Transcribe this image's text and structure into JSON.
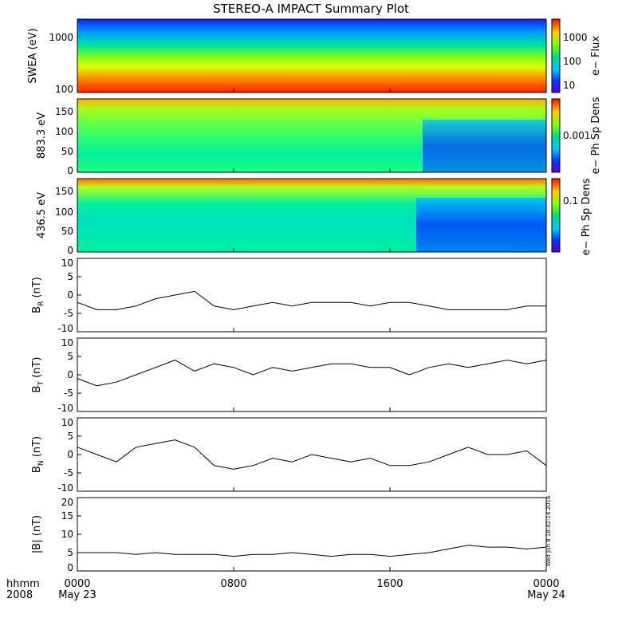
{
  "title": "STEREO-A IMPACT Summary Plot",
  "x_axis": {
    "ticks": [
      "0000",
      "0800",
      "1600",
      "0000"
    ],
    "dates": [
      "May 23",
      "",
      "",
      "May 24"
    ],
    "unit_label": "hhmm",
    "year_label": "2008"
  },
  "timestamp": "Wed Jun  8 18:42:14 2016",
  "colors": {
    "line": "#000000",
    "frame": "#000000",
    "background": "#ffffff"
  },
  "chart_data": [
    {
      "type": "heatmap",
      "ylabel": "SWEA (eV)",
      "yscale": "log",
      "ylim": [
        100,
        2000
      ],
      "yticks": [
        "100",
        "1000"
      ],
      "colorbar": {
        "label": "e− Flux",
        "scale": "log",
        "ticks": [
          "10",
          "100",
          "1000"
        ]
      },
      "description_bands": "flux highest (red) at low energy near 100 eV, decreasing to blue above ~1000 eV"
    },
    {
      "type": "heatmap",
      "ylabel": "883.3 eV",
      "ylim": [
        0,
        180
      ],
      "yticks": [
        "0",
        "50",
        "100",
        "150"
      ],
      "colorbar": {
        "label": "e− Ph Sp Dens",
        "scale": "log",
        "ticks": [
          "0.001"
        ]
      }
    },
    {
      "type": "heatmap",
      "ylabel": "436.5 eV",
      "ylim": [
        0,
        180
      ],
      "yticks": [
        "0",
        "50",
        "100",
        "150"
      ],
      "colorbar": {
        "label": "e− Ph Sp Dens",
        "scale": "log",
        "ticks": [
          "0.1"
        ]
      }
    },
    {
      "type": "line",
      "ylabel": "B_R (nT)",
      "ylabel_main": "B",
      "ylabel_sub": "R",
      "ylabel_unit": "(nT)",
      "ylim": [
        -10,
        10
      ],
      "yticks": [
        "-10",
        "-5",
        "0",
        "5",
        "10"
      ],
      "x": [
        0,
        1,
        2,
        3,
        4,
        5,
        6,
        7,
        8,
        9,
        10,
        11,
        12,
        13,
        14,
        15,
        16,
        17,
        18,
        19,
        20,
        21,
        22,
        23,
        24
      ],
      "y": [
        -2,
        -4,
        -4,
        -3,
        -1,
        0,
        1,
        -3,
        -4,
        -3,
        -2,
        -3,
        -2,
        -2,
        -2,
        -3,
        -2,
        -2,
        -3,
        -4,
        -4,
        -4,
        -4,
        -3,
        -3
      ]
    },
    {
      "type": "line",
      "ylabel": "B_T (nT)",
      "ylabel_main": "B",
      "ylabel_sub": "T",
      "ylabel_unit": "(nT)",
      "ylim": [
        -10,
        10
      ],
      "yticks": [
        "-10",
        "-5",
        "0",
        "5",
        "10"
      ],
      "x": [
        0,
        1,
        2,
        3,
        4,
        5,
        6,
        7,
        8,
        9,
        10,
        11,
        12,
        13,
        14,
        15,
        16,
        17,
        18,
        19,
        20,
        21,
        22,
        23,
        24
      ],
      "y": [
        -1,
        -3,
        -2,
        0,
        2,
        4,
        1,
        3,
        2,
        0,
        2,
        1,
        2,
        3,
        3,
        2,
        2,
        0,
        2,
        3,
        2,
        3,
        4,
        3,
        4
      ]
    },
    {
      "type": "line",
      "ylabel": "B_N (nT)",
      "ylabel_main": "B",
      "ylabel_sub": "N",
      "ylabel_unit": "(nT)",
      "ylim": [
        -10,
        10
      ],
      "yticks": [
        "-10",
        "-5",
        "0",
        "5",
        "10"
      ],
      "x": [
        0,
        1,
        2,
        3,
        4,
        5,
        6,
        7,
        8,
        9,
        10,
        11,
        12,
        13,
        14,
        15,
        16,
        17,
        18,
        19,
        20,
        21,
        22,
        23,
        24
      ],
      "y": [
        2,
        0,
        -2,
        2,
        3,
        4,
        2,
        -3,
        -4,
        -3,
        -1,
        -2,
        0,
        -1,
        -2,
        -1,
        -3,
        -3,
        -2,
        0,
        2,
        0,
        0,
        1,
        -3
      ]
    },
    {
      "type": "line",
      "ylabel": "|B| (nT)",
      "ylabel_main": "|B|",
      "ylabel_sub": "",
      "ylabel_unit": "(nT)",
      "ylim": [
        0,
        20
      ],
      "yticks": [
        "0",
        "5",
        "10",
        "15",
        "20"
      ],
      "x": [
        0,
        1,
        2,
        3,
        4,
        5,
        6,
        7,
        8,
        9,
        10,
        11,
        12,
        13,
        14,
        15,
        16,
        17,
        18,
        19,
        20,
        21,
        22,
        23,
        24
      ],
      "y": [
        5,
        5,
        5,
        4.5,
        5,
        4.5,
        4.5,
        4.5,
        4,
        4.5,
        4.5,
        5,
        4.5,
        4,
        4.5,
        4.5,
        4,
        4.5,
        5,
        6,
        7,
        6.5,
        6.5,
        6,
        6.5
      ]
    }
  ]
}
